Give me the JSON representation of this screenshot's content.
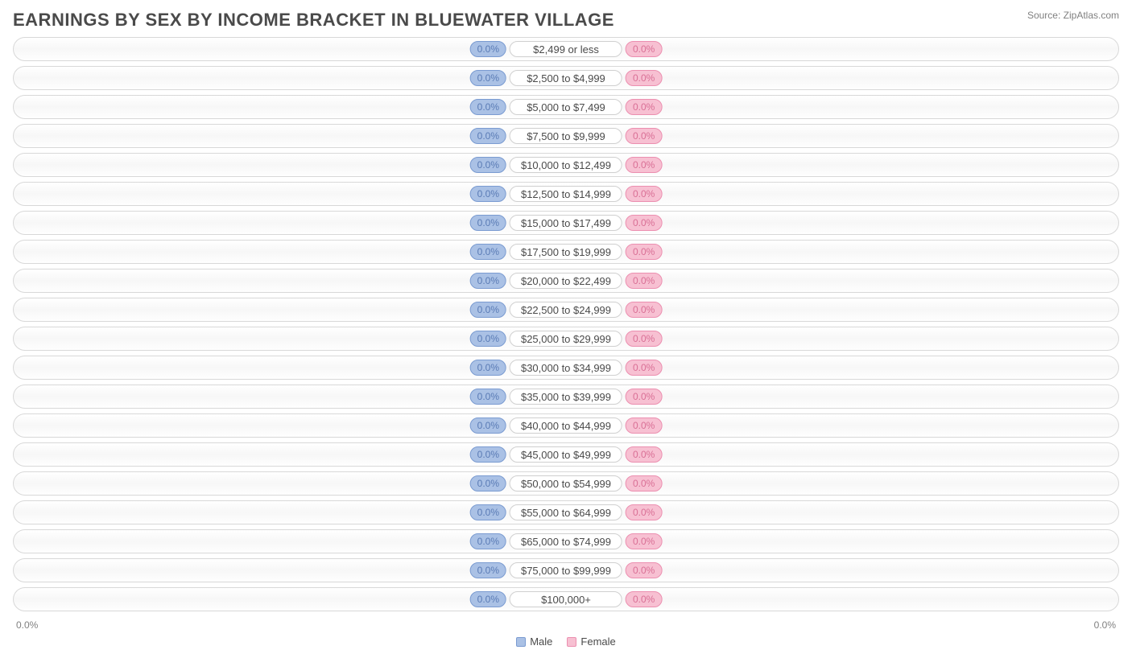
{
  "title": "EARNINGS BY SEX BY INCOME BRACKET IN BLUEWATER VILLAGE",
  "source": "Source: ZipAtlas.com",
  "chart": {
    "type": "diverging-bar",
    "male_value_text": "0.0%",
    "female_value_text": "0.0%",
    "male_bg": "#aac1e5",
    "male_border": "#7a9bd1",
    "male_text_color": "#5a7bb5",
    "female_bg": "#f7c0d2",
    "female_border": "#ec8fb0",
    "female_text_color": "#d96f95",
    "track_border": "#d8d8d8",
    "label_border": "#d0d0d0",
    "label_text_color": "#4a4a4a",
    "brackets": [
      "$2,499 or less",
      "$2,500 to $4,999",
      "$5,000 to $7,499",
      "$7,500 to $9,999",
      "$10,000 to $12,499",
      "$12,500 to $14,999",
      "$15,000 to $17,499",
      "$17,500 to $19,999",
      "$20,000 to $22,499",
      "$22,500 to $24,999",
      "$25,000 to $29,999",
      "$30,000 to $34,999",
      "$35,000 to $39,999",
      "$40,000 to $44,999",
      "$45,000 to $49,999",
      "$50,000 to $54,999",
      "$55,000 to $64,999",
      "$65,000 to $74,999",
      "$75,000 to $99,999",
      "$100,000+"
    ],
    "axis_left": "0.0%",
    "axis_right": "0.0%",
    "legend": {
      "male_label": "Male",
      "female_label": "Female"
    }
  }
}
